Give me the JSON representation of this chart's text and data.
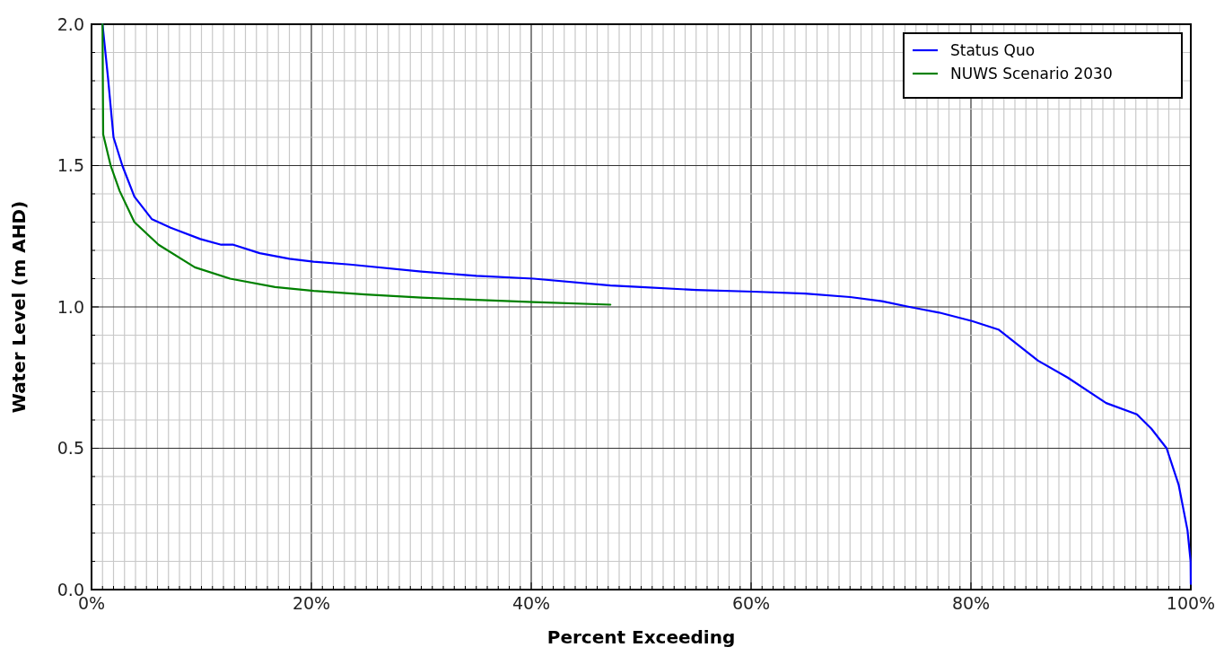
{
  "chart_data": {
    "type": "line",
    "xlabel": "Percent Exceeding",
    "ylabel": "Water Level (m AHD)",
    "xlim": [
      0,
      100
    ],
    "ylim": [
      0,
      2
    ],
    "xticks": [
      {
        "value": 0,
        "label": "0%"
      },
      {
        "value": 1,
        "label": null
      },
      {
        "value": 2,
        "label": null
      },
      {
        "value": 3,
        "label": null
      },
      {
        "value": 4,
        "label": null
      },
      {
        "value": 5,
        "label": null
      },
      {
        "value": 6,
        "label": null
      },
      {
        "value": 7,
        "label": null
      },
      {
        "value": 8,
        "label": null
      },
      {
        "value": 9,
        "label": null
      },
      {
        "value": 10,
        "label": null
      },
      {
        "value": 11,
        "label": null
      },
      {
        "value": 12,
        "label": null
      },
      {
        "value": 13,
        "label": null
      },
      {
        "value": 14,
        "label": null
      },
      {
        "value": 15,
        "label": null
      },
      {
        "value": 16,
        "label": null
      },
      {
        "value": 17,
        "label": null
      },
      {
        "value": 18,
        "label": null
      },
      {
        "value": 19,
        "label": null
      },
      {
        "value": 20,
        "label": "20%"
      },
      {
        "value": 21,
        "label": null
      },
      {
        "value": 22,
        "label": null
      },
      {
        "value": 23,
        "label": null
      },
      {
        "value": 24,
        "label": null
      },
      {
        "value": 25,
        "label": null
      },
      {
        "value": 26,
        "label": null
      },
      {
        "value": 27,
        "label": null
      },
      {
        "value": 28,
        "label": null
      },
      {
        "value": 29,
        "label": null
      },
      {
        "value": 30,
        "label": null
      },
      {
        "value": 31,
        "label": null
      },
      {
        "value": 32,
        "label": null
      },
      {
        "value": 33,
        "label": null
      },
      {
        "value": 34,
        "label": null
      },
      {
        "value": 35,
        "label": null
      },
      {
        "value": 36,
        "label": null
      },
      {
        "value": 37,
        "label": null
      },
      {
        "value": 38,
        "label": null
      },
      {
        "value": 39,
        "label": null
      },
      {
        "value": 40,
        "label": "40%"
      },
      {
        "value": 41,
        "label": null
      },
      {
        "value": 42,
        "label": null
      },
      {
        "value": 43,
        "label": null
      },
      {
        "value": 44,
        "label": null
      },
      {
        "value": 45,
        "label": null
      },
      {
        "value": 46,
        "label": null
      },
      {
        "value": 47,
        "label": null
      },
      {
        "value": 48,
        "label": null
      },
      {
        "value": 49,
        "label": null
      },
      {
        "value": 50,
        "label": null
      },
      {
        "value": 51,
        "label": null
      },
      {
        "value": 52,
        "label": null
      },
      {
        "value": 53,
        "label": null
      },
      {
        "value": 54,
        "label": null
      },
      {
        "value": 55,
        "label": null
      },
      {
        "value": 56,
        "label": null
      },
      {
        "value": 57,
        "label": null
      },
      {
        "value": 58,
        "label": null
      },
      {
        "value": 59,
        "label": null
      },
      {
        "value": 60,
        "label": "60%"
      },
      {
        "value": 61,
        "label": null
      },
      {
        "value": 62,
        "label": null
      },
      {
        "value": 63,
        "label": null
      },
      {
        "value": 64,
        "label": null
      },
      {
        "value": 65,
        "label": null
      },
      {
        "value": 66,
        "label": null
      },
      {
        "value": 67,
        "label": null
      },
      {
        "value": 68,
        "label": null
      },
      {
        "value": 69,
        "label": null
      },
      {
        "value": 70,
        "label": null
      },
      {
        "value": 71,
        "label": null
      },
      {
        "value": 72,
        "label": null
      },
      {
        "value": 73,
        "label": null
      },
      {
        "value": 74,
        "label": null
      },
      {
        "value": 75,
        "label": null
      },
      {
        "value": 76,
        "label": null
      },
      {
        "value": 77,
        "label": null
      },
      {
        "value": 78,
        "label": null
      },
      {
        "value": 79,
        "label": null
      },
      {
        "value": 80,
        "label": "80%"
      },
      {
        "value": 81,
        "label": null
      },
      {
        "value": 82,
        "label": null
      },
      {
        "value": 83,
        "label": null
      },
      {
        "value": 84,
        "label": null
      },
      {
        "value": 85,
        "label": null
      },
      {
        "value": 86,
        "label": null
      },
      {
        "value": 87,
        "label": null
      },
      {
        "value": 88,
        "label": null
      },
      {
        "value": 89,
        "label": null
      },
      {
        "value": 90,
        "label": null
      },
      {
        "value": 91,
        "label": null
      },
      {
        "value": 92,
        "label": null
      },
      {
        "value": 93,
        "label": null
      },
      {
        "value": 94,
        "label": null
      },
      {
        "value": 95,
        "label": null
      },
      {
        "value": 96,
        "label": null
      },
      {
        "value": 97,
        "label": null
      },
      {
        "value": 98,
        "label": null
      },
      {
        "value": 99,
        "label": null
      },
      {
        "value": 100,
        "label": "100%"
      }
    ],
    "yticks": [
      {
        "value": 0,
        "label": "0.0"
      },
      {
        "value": 0.1,
        "label": null
      },
      {
        "value": 0.2,
        "label": null
      },
      {
        "value": 0.3,
        "label": null
      },
      {
        "value": 0.4,
        "label": null
      },
      {
        "value": 0.5,
        "label": "0.5"
      },
      {
        "value": 0.6,
        "label": null
      },
      {
        "value": 0.7,
        "label": null
      },
      {
        "value": 0.8,
        "label": null
      },
      {
        "value": 0.9,
        "label": null
      },
      {
        "value": 1,
        "label": "1.0"
      },
      {
        "value": 1.1,
        "label": null
      },
      {
        "value": 1.2,
        "label": null
      },
      {
        "value": 1.3,
        "label": null
      },
      {
        "value": 1.4,
        "label": null
      },
      {
        "value": 1.5,
        "label": "1.5"
      },
      {
        "value": 1.6,
        "label": null
      },
      {
        "value": 1.7,
        "label": null
      },
      {
        "value": 1.8,
        "label": null
      },
      {
        "value": 1.9,
        "label": null
      },
      {
        "value": 2,
        "label": "2.0"
      }
    ],
    "grid": true,
    "legend": "top right",
    "line_style": "solid",
    "marker": "none",
    "series": [
      {
        "name": "Status Quo",
        "color": "#0000ff",
        "x": [
          1.0,
          1.5,
          2.0,
          2.8,
          3.9,
          5.5,
          7.2,
          9.9,
          11.8,
          12.9,
          15.3,
          18.0,
          20.2,
          23.5,
          30,
          35,
          40.2,
          47.2,
          50,
          55,
          60.2,
          64.9,
          69.0,
          71.9,
          74.4,
          77.1,
          80.1,
          82.5,
          86.1,
          88.8,
          92.3,
          95.1,
          96.4,
          97.8,
          98.9,
          99.7,
          99.98,
          100
        ],
        "values": [
          2.0,
          1.81,
          1.6,
          1.5,
          1.39,
          1.31,
          1.28,
          1.24,
          1.22,
          1.22,
          1.19,
          1.17,
          1.16,
          1.15,
          1.125,
          1.11,
          1.1,
          1.076,
          1.07,
          1.06,
          1.054,
          1.047,
          1.035,
          1.02,
          1.0,
          0.98,
          0.95,
          0.92,
          0.81,
          0.75,
          0.66,
          0.62,
          0.57,
          0.5,
          0.37,
          0.21,
          0.1,
          0.02
        ]
      },
      {
        "name": "NUWS Scenario 2030",
        "color": "#008000",
        "x": [
          1.0,
          1.06,
          1.74,
          2.56,
          3.9,
          6.1,
          9.4,
          12.6,
          16.7,
          20.2,
          24.9,
          30,
          35,
          40.2,
          47.2
        ],
        "values": [
          2.0,
          1.61,
          1.5,
          1.41,
          1.3,
          1.22,
          1.14,
          1.1,
          1.07,
          1.057,
          1.044,
          1.033,
          1.025,
          1.017,
          1.008
        ]
      }
    ]
  }
}
